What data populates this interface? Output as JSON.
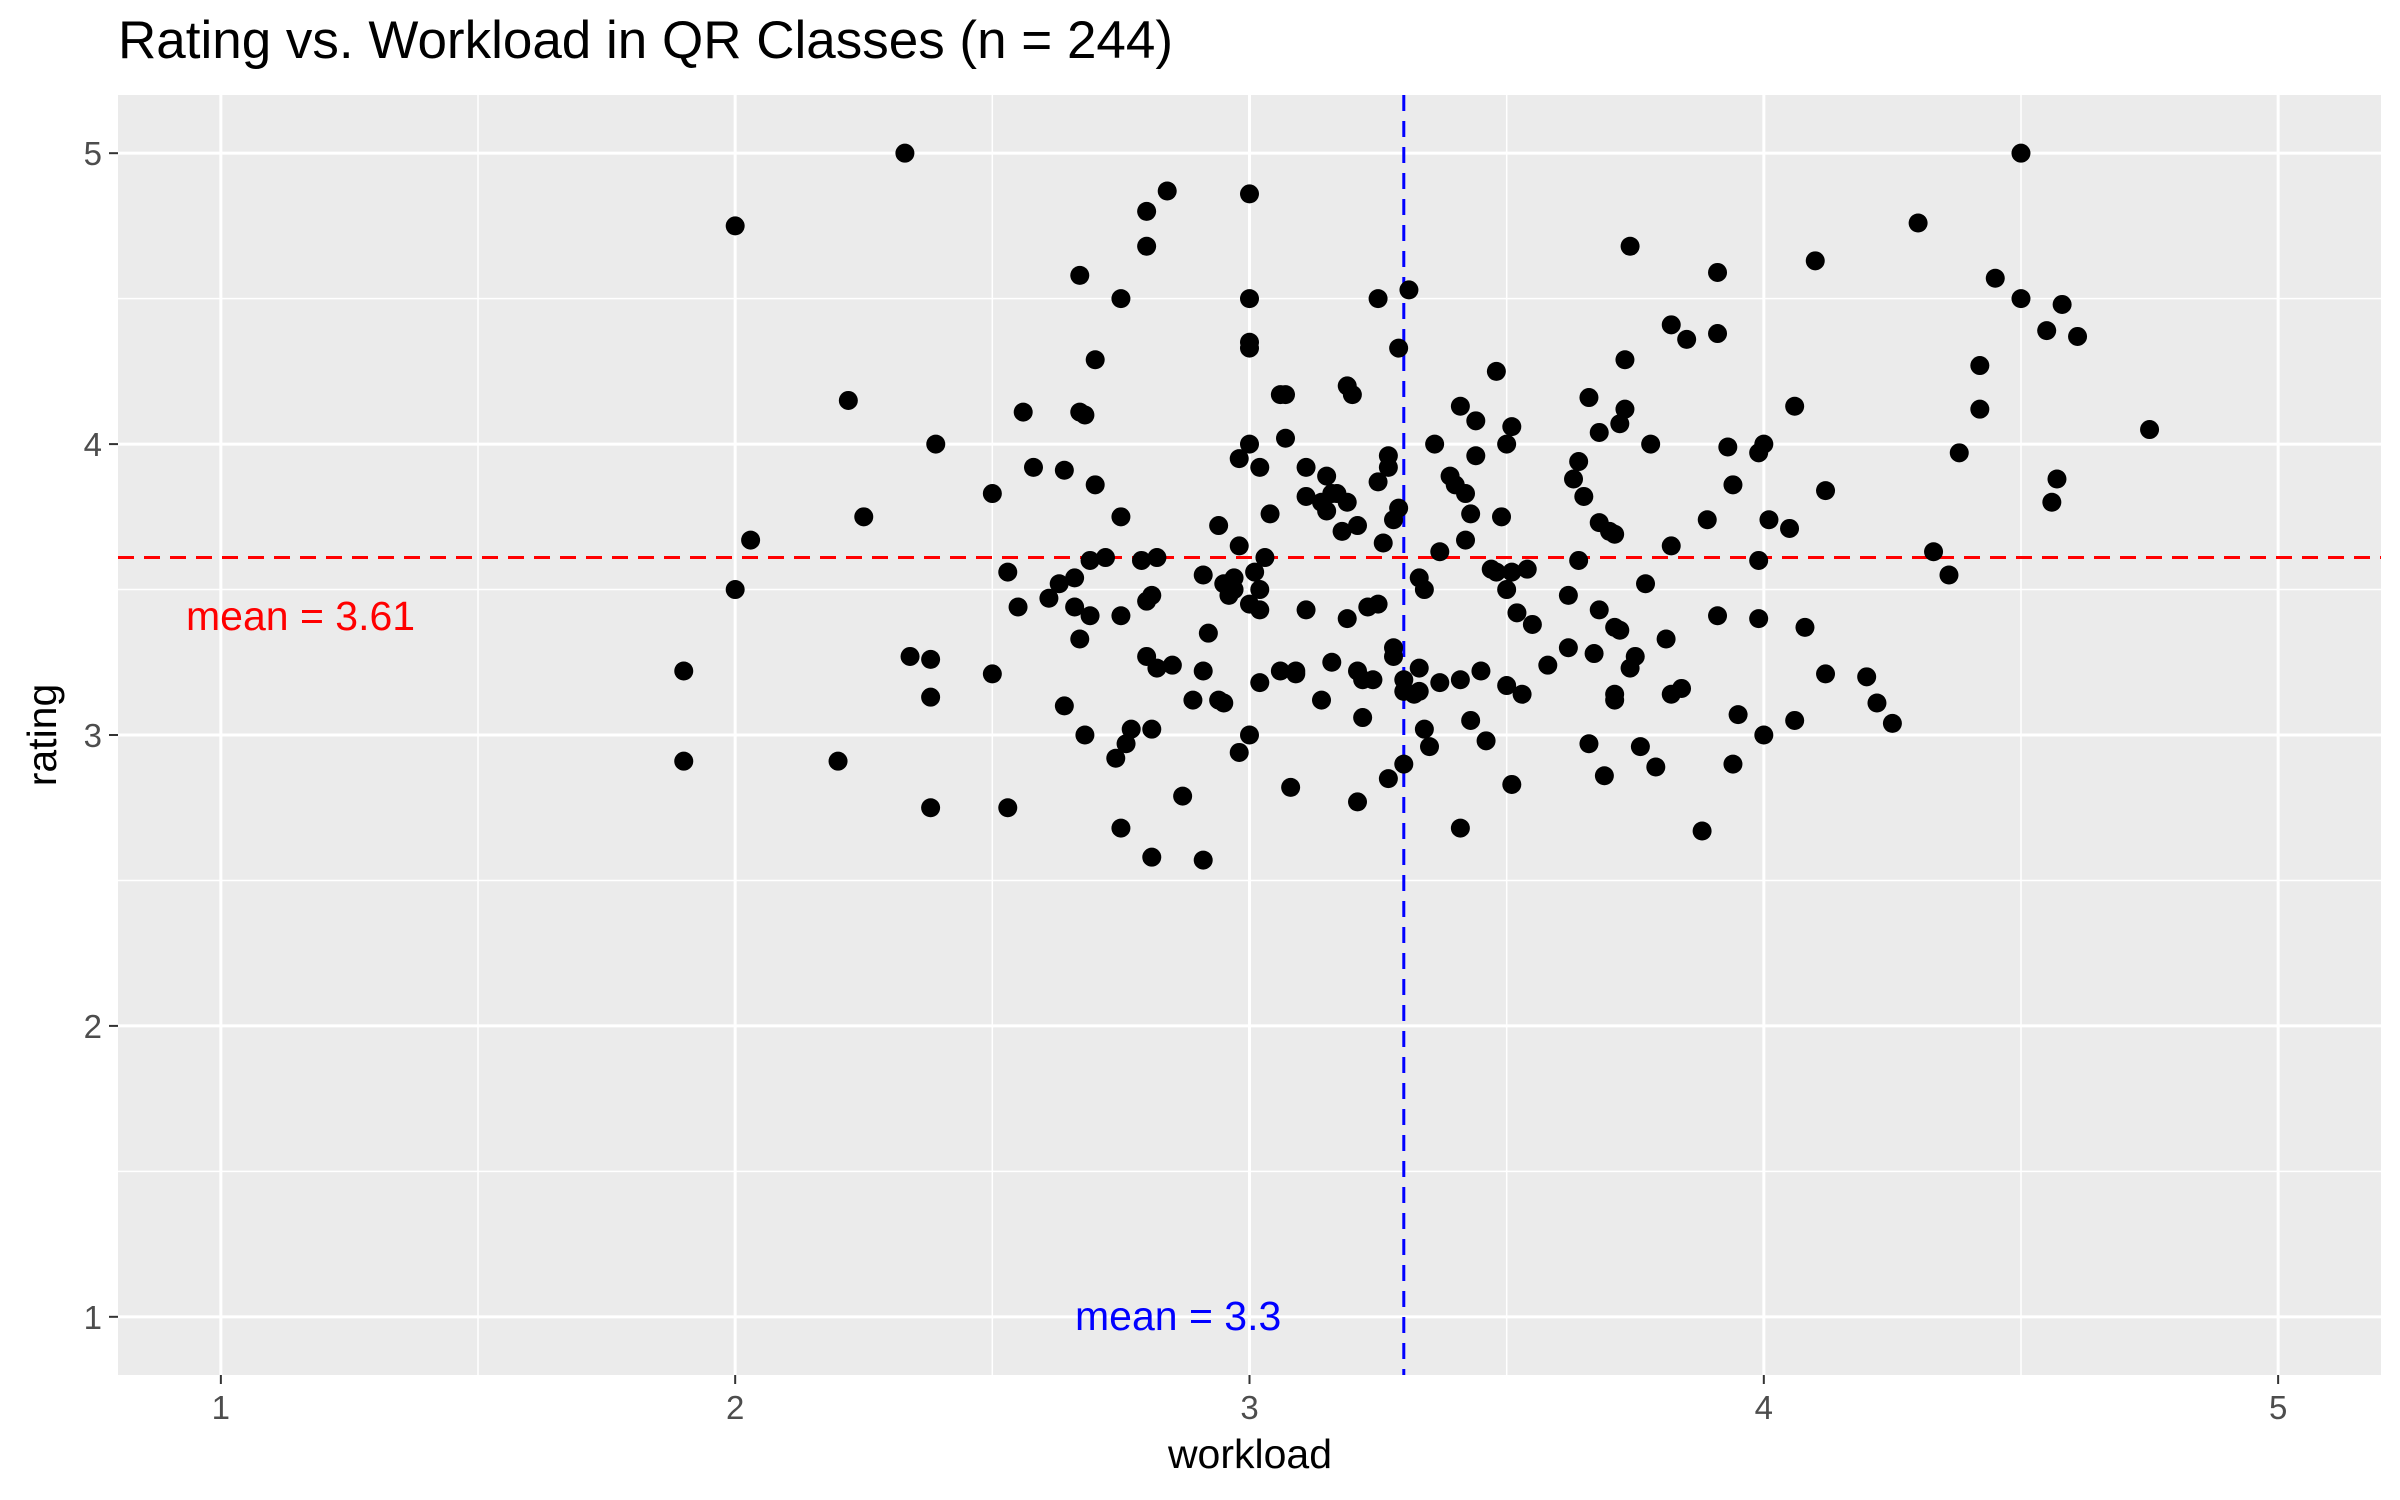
{
  "chart_data": {
    "type": "scatter",
    "title": "Rating vs. Workload in QR Classes (n = 244)",
    "xlabel": "workload",
    "ylabel": "rating",
    "xlim": [
      0.8,
      5.2
    ],
    "ylim": [
      0.8,
      5.2
    ],
    "x_ticks": [
      "1",
      "2",
      "3",
      "4",
      "5"
    ],
    "y_ticks": [
      "1",
      "2",
      "3",
      "4",
      "5"
    ],
    "grid": true,
    "background": "#ebebeb",
    "point_color": "#000000",
    "reference_lines": [
      {
        "axis": "y",
        "value": 3.61,
        "color": "#ff0000",
        "style": "dashed",
        "label": "mean =  3.61"
      },
      {
        "axis": "x",
        "value": 3.3,
        "color": "#0000ff",
        "style": "dashed",
        "label": "mean =  3.3"
      }
    ],
    "points": [
      [
        1.9,
        3.22
      ],
      [
        1.9,
        2.91
      ],
      [
        2.0,
        4.75
      ],
      [
        2.0,
        3.5
      ],
      [
        2.03,
        3.67
      ],
      [
        2.2,
        2.91
      ],
      [
        2.22,
        4.15
      ],
      [
        2.25,
        3.75
      ],
      [
        2.33,
        5.0
      ],
      [
        2.34,
        3.27
      ],
      [
        2.38,
        3.26
      ],
      [
        2.38,
        3.13
      ],
      [
        2.38,
        2.75
      ],
      [
        2.39,
        4.0
      ],
      [
        2.5,
        3.83
      ],
      [
        2.5,
        3.21
      ],
      [
        2.53,
        3.56
      ],
      [
        2.53,
        2.75
      ],
      [
        2.55,
        3.44
      ],
      [
        2.56,
        4.11
      ],
      [
        2.58,
        3.92
      ],
      [
        2.61,
        3.47
      ],
      [
        2.63,
        3.52
      ],
      [
        2.64,
        3.91
      ],
      [
        2.64,
        3.1
      ],
      [
        2.66,
        3.54
      ],
      [
        2.66,
        3.44
      ],
      [
        2.67,
        4.58
      ],
      [
        2.67,
        4.11
      ],
      [
        2.67,
        3.33
      ],
      [
        2.68,
        4.1
      ],
      [
        2.68,
        3.0
      ],
      [
        2.69,
        3.6
      ],
      [
        2.69,
        3.41
      ],
      [
        2.7,
        4.29
      ],
      [
        2.7,
        3.86
      ],
      [
        2.72,
        3.61
      ],
      [
        2.74,
        2.92
      ],
      [
        2.75,
        4.5
      ],
      [
        2.75,
        3.75
      ],
      [
        2.75,
        3.41
      ],
      [
        2.75,
        2.68
      ],
      [
        2.76,
        2.97
      ],
      [
        2.77,
        3.02
      ],
      [
        2.79,
        3.6
      ],
      [
        2.8,
        4.8
      ],
      [
        2.8,
        4.68
      ],
      [
        2.8,
        3.46
      ],
      [
        2.8,
        3.27
      ],
      [
        2.81,
        3.48
      ],
      [
        2.81,
        3.02
      ],
      [
        2.81,
        2.58
      ],
      [
        2.82,
        3.61
      ],
      [
        2.82,
        3.23
      ],
      [
        2.84,
        4.87
      ],
      [
        2.85,
        3.24
      ],
      [
        2.87,
        2.79
      ],
      [
        2.89,
        3.12
      ],
      [
        2.91,
        3.55
      ],
      [
        2.91,
        3.22
      ],
      [
        2.91,
        2.57
      ],
      [
        2.92,
        3.35
      ],
      [
        2.94,
        3.72
      ],
      [
        2.94,
        3.12
      ],
      [
        2.95,
        3.52
      ],
      [
        2.95,
        3.11
      ],
      [
        2.96,
        3.48
      ],
      [
        2.97,
        3.54
      ],
      [
        2.97,
        3.5
      ],
      [
        2.98,
        3.95
      ],
      [
        2.98,
        3.65
      ],
      [
        2.98,
        2.94
      ],
      [
        3.0,
        4.86
      ],
      [
        3.0,
        4.5
      ],
      [
        3.0,
        4.35
      ],
      [
        3.0,
        4.33
      ],
      [
        3.0,
        4.0
      ],
      [
        3.0,
        3.45
      ],
      [
        3.0,
        3.0
      ],
      [
        3.01,
        3.56
      ],
      [
        3.02,
        3.92
      ],
      [
        3.02,
        3.5
      ],
      [
        3.02,
        3.43
      ],
      [
        3.02,
        3.18
      ],
      [
        3.03,
        3.61
      ],
      [
        3.04,
        3.76
      ],
      [
        3.06,
        4.17
      ],
      [
        3.06,
        3.22
      ],
      [
        3.07,
        4.17
      ],
      [
        3.07,
        4.02
      ],
      [
        3.08,
        2.82
      ],
      [
        3.09,
        3.22
      ],
      [
        3.09,
        3.21
      ],
      [
        3.11,
        3.92
      ],
      [
        3.11,
        3.82
      ],
      [
        3.11,
        3.43
      ],
      [
        3.14,
        3.8
      ],
      [
        3.14,
        3.12
      ],
      [
        3.15,
        3.89
      ],
      [
        3.15,
        3.77
      ],
      [
        3.16,
        3.83
      ],
      [
        3.16,
        3.25
      ],
      [
        3.17,
        3.83
      ],
      [
        3.18,
        3.7
      ],
      [
        3.19,
        4.2
      ],
      [
        3.19,
        3.8
      ],
      [
        3.19,
        3.4
      ],
      [
        3.2,
        4.17
      ],
      [
        3.21,
        3.72
      ],
      [
        3.21,
        3.22
      ],
      [
        3.21,
        2.77
      ],
      [
        3.22,
        3.19
      ],
      [
        3.22,
        3.06
      ],
      [
        3.23,
        3.44
      ],
      [
        3.24,
        3.19
      ],
      [
        3.25,
        4.5
      ],
      [
        3.25,
        3.87
      ],
      [
        3.25,
        3.45
      ],
      [
        3.26,
        3.66
      ],
      [
        3.27,
        3.96
      ],
      [
        3.27,
        3.92
      ],
      [
        3.27,
        2.85
      ],
      [
        3.28,
        3.74
      ],
      [
        3.28,
        3.3
      ],
      [
        3.28,
        3.27
      ],
      [
        3.29,
        4.33
      ],
      [
        3.29,
        3.78
      ],
      [
        3.3,
        3.19
      ],
      [
        3.3,
        3.15
      ],
      [
        3.3,
        2.9
      ],
      [
        3.31,
        4.53
      ],
      [
        3.32,
        3.14
      ],
      [
        3.33,
        3.54
      ],
      [
        3.33,
        3.23
      ],
      [
        3.33,
        3.15
      ],
      [
        3.34,
        3.5
      ],
      [
        3.34,
        3.02
      ],
      [
        3.35,
        2.96
      ],
      [
        3.36,
        4.0
      ],
      [
        3.37,
        3.63
      ],
      [
        3.37,
        3.18
      ],
      [
        3.39,
        3.89
      ],
      [
        3.4,
        3.86
      ],
      [
        3.41,
        4.13
      ],
      [
        3.41,
        3.19
      ],
      [
        3.41,
        2.68
      ],
      [
        3.42,
        3.83
      ],
      [
        3.42,
        3.67
      ],
      [
        3.43,
        3.76
      ],
      [
        3.43,
        3.05
      ],
      [
        3.44,
        4.08
      ],
      [
        3.44,
        3.96
      ],
      [
        3.45,
        3.22
      ],
      [
        3.46,
        2.98
      ],
      [
        3.47,
        3.57
      ],
      [
        3.48,
        4.25
      ],
      [
        3.48,
        3.56
      ],
      [
        3.49,
        3.75
      ],
      [
        3.5,
        4.0
      ],
      [
        3.5,
        3.5
      ],
      [
        3.5,
        3.17
      ],
      [
        3.51,
        4.06
      ],
      [
        3.51,
        3.56
      ],
      [
        3.51,
        2.83
      ],
      [
        3.52,
        3.42
      ],
      [
        3.53,
        3.14
      ],
      [
        3.54,
        3.57
      ],
      [
        3.55,
        3.38
      ],
      [
        3.58,
        3.24
      ],
      [
        3.62,
        3.48
      ],
      [
        3.62,
        3.3
      ],
      [
        3.63,
        3.88
      ],
      [
        3.64,
        3.94
      ],
      [
        3.64,
        3.6
      ],
      [
        3.65,
        3.82
      ],
      [
        3.66,
        4.16
      ],
      [
        3.66,
        2.97
      ],
      [
        3.67,
        3.28
      ],
      [
        3.68,
        4.04
      ],
      [
        3.68,
        3.73
      ],
      [
        3.68,
        3.43
      ],
      [
        3.69,
        2.86
      ],
      [
        3.7,
        3.7
      ],
      [
        3.71,
        3.69
      ],
      [
        3.71,
        3.14
      ],
      [
        3.71,
        3.12
      ],
      [
        3.71,
        3.37
      ],
      [
        3.72,
        4.07
      ],
      [
        3.72,
        3.36
      ],
      [
        3.73,
        4.29
      ],
      [
        3.73,
        4.12
      ],
      [
        3.74,
        4.68
      ],
      [
        3.74,
        3.23
      ],
      [
        3.75,
        3.27
      ],
      [
        3.76,
        2.96
      ],
      [
        3.77,
        3.52
      ],
      [
        3.78,
        4.0
      ],
      [
        3.79,
        2.89
      ],
      [
        3.81,
        3.33
      ],
      [
        3.82,
        4.41
      ],
      [
        3.82,
        3.65
      ],
      [
        3.82,
        3.14
      ],
      [
        3.84,
        3.16
      ],
      [
        3.85,
        4.36
      ],
      [
        3.88,
        2.67
      ],
      [
        3.89,
        3.74
      ],
      [
        3.91,
        4.59
      ],
      [
        3.91,
        4.38
      ],
      [
        3.91,
        3.41
      ],
      [
        3.93,
        3.99
      ],
      [
        3.94,
        3.86
      ],
      [
        3.94,
        2.9
      ],
      [
        3.95,
        3.07
      ],
      [
        3.99,
        3.97
      ],
      [
        3.99,
        3.6
      ],
      [
        3.99,
        3.4
      ],
      [
        4.0,
        4.0
      ],
      [
        4.0,
        3.0
      ],
      [
        4.01,
        3.74
      ],
      [
        4.05,
        3.71
      ],
      [
        4.06,
        4.13
      ],
      [
        4.06,
        3.05
      ],
      [
        4.08,
        3.37
      ],
      [
        4.1,
        4.63
      ],
      [
        4.12,
        3.84
      ],
      [
        4.12,
        3.21
      ],
      [
        4.2,
        3.2
      ],
      [
        4.22,
        3.11
      ],
      [
        4.25,
        3.04
      ],
      [
        4.3,
        4.76
      ],
      [
        4.33,
        3.63
      ],
      [
        4.36,
        3.55
      ],
      [
        4.38,
        3.97
      ],
      [
        4.42,
        4.27
      ],
      [
        4.42,
        4.12
      ],
      [
        4.45,
        4.57
      ],
      [
        4.5,
        5.0
      ],
      [
        4.5,
        4.5
      ],
      [
        4.55,
        4.39
      ],
      [
        4.56,
        3.8
      ],
      [
        4.57,
        3.88
      ],
      [
        4.58,
        4.48
      ],
      [
        4.61,
        4.37
      ],
      [
        4.75,
        4.05
      ]
    ]
  }
}
